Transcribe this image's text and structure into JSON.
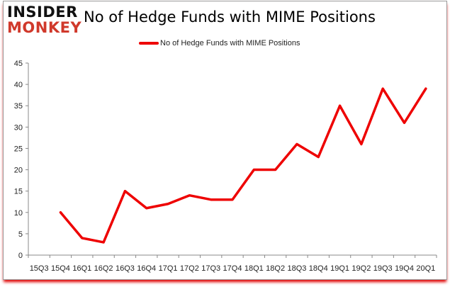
{
  "logo": {
    "line1": "INSIDER",
    "line2": "MONKEY"
  },
  "chart_data": {
    "type": "line",
    "title": "No of Hedge Funds with MIME Positions",
    "categories": [
      "15Q3",
      "15Q4",
      "16Q1",
      "16Q2",
      "16Q3",
      "16Q4",
      "17Q1",
      "17Q2",
      "17Q3",
      "17Q4",
      "18Q1",
      "18Q2",
      "18Q3",
      "18Q4",
      "19Q1",
      "19Q2",
      "19Q3",
      "19Q4",
      "20Q1"
    ],
    "series": [
      {
        "name": "No of Hedge Funds with MIME Positions",
        "color": "#ee0000",
        "values": [
          null,
          10,
          4,
          3,
          15,
          11,
          12,
          14,
          13,
          13,
          20,
          20,
          26,
          23,
          35,
          26,
          39,
          31,
          39
        ]
      }
    ],
    "ylim": [
      0,
      45
    ],
    "yticks": [
      0,
      5,
      10,
      15,
      20,
      25,
      30,
      35,
      40,
      45
    ],
    "grid": false,
    "legend": "top-center"
  }
}
